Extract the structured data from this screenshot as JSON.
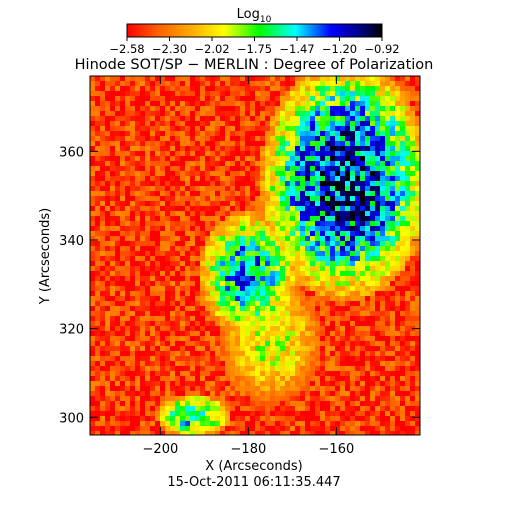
{
  "chart_data": {
    "type": "heatmap",
    "title": "Hinode SOT/SP − MERLIN : Degree of Polarization",
    "xlabel": "X (Arcseconds)",
    "ylabel": "Y (Arcseconds)",
    "footer": "15-Oct-2011 06:11:35.447",
    "colorbar": {
      "label": "Log",
      "label_sub": "10",
      "ticks": [
        "−2.58",
        "−2.30",
        "−2.02",
        "−1.75",
        "−1.47",
        "−1.20",
        "−0.92"
      ],
      "range": [
        -2.58,
        -0.92
      ],
      "colormap": [
        "#ff0000",
        "#ff5a00",
        "#ffa000",
        "#ffff00",
        "#00ff00",
        "#00ffff",
        "#0000ff",
        "#000080",
        "#000000"
      ]
    },
    "x_ticks": [
      {
        "value": -200,
        "label": "−200"
      },
      {
        "value": -180,
        "label": "−180"
      },
      {
        "value": -160,
        "label": "−160"
      }
    ],
    "y_ticks": [
      {
        "value": 300,
        "label": "300"
      },
      {
        "value": 320,
        "label": "320"
      },
      {
        "value": 340,
        "label": "340"
      },
      {
        "value": 360,
        "label": "360"
      }
    ],
    "xlim": [
      -216,
      -141
    ],
    "ylim": [
      296,
      377
    ],
    "regions": [
      {
        "x": [
          -175,
          -141
        ],
        "y": [
          330,
          377
        ],
        "level": -1.0
      },
      {
        "x": [
          -190,
          -170
        ],
        "y": [
          320,
          345
        ],
        "level": -1.3
      },
      {
        "x": [
          -185,
          -165
        ],
        "y": [
          305,
          330
        ],
        "level": -1.8
      },
      {
        "x": [
          -200,
          -185
        ],
        "y": [
          296,
          305
        ],
        "level": -1.4
      }
    ]
  }
}
